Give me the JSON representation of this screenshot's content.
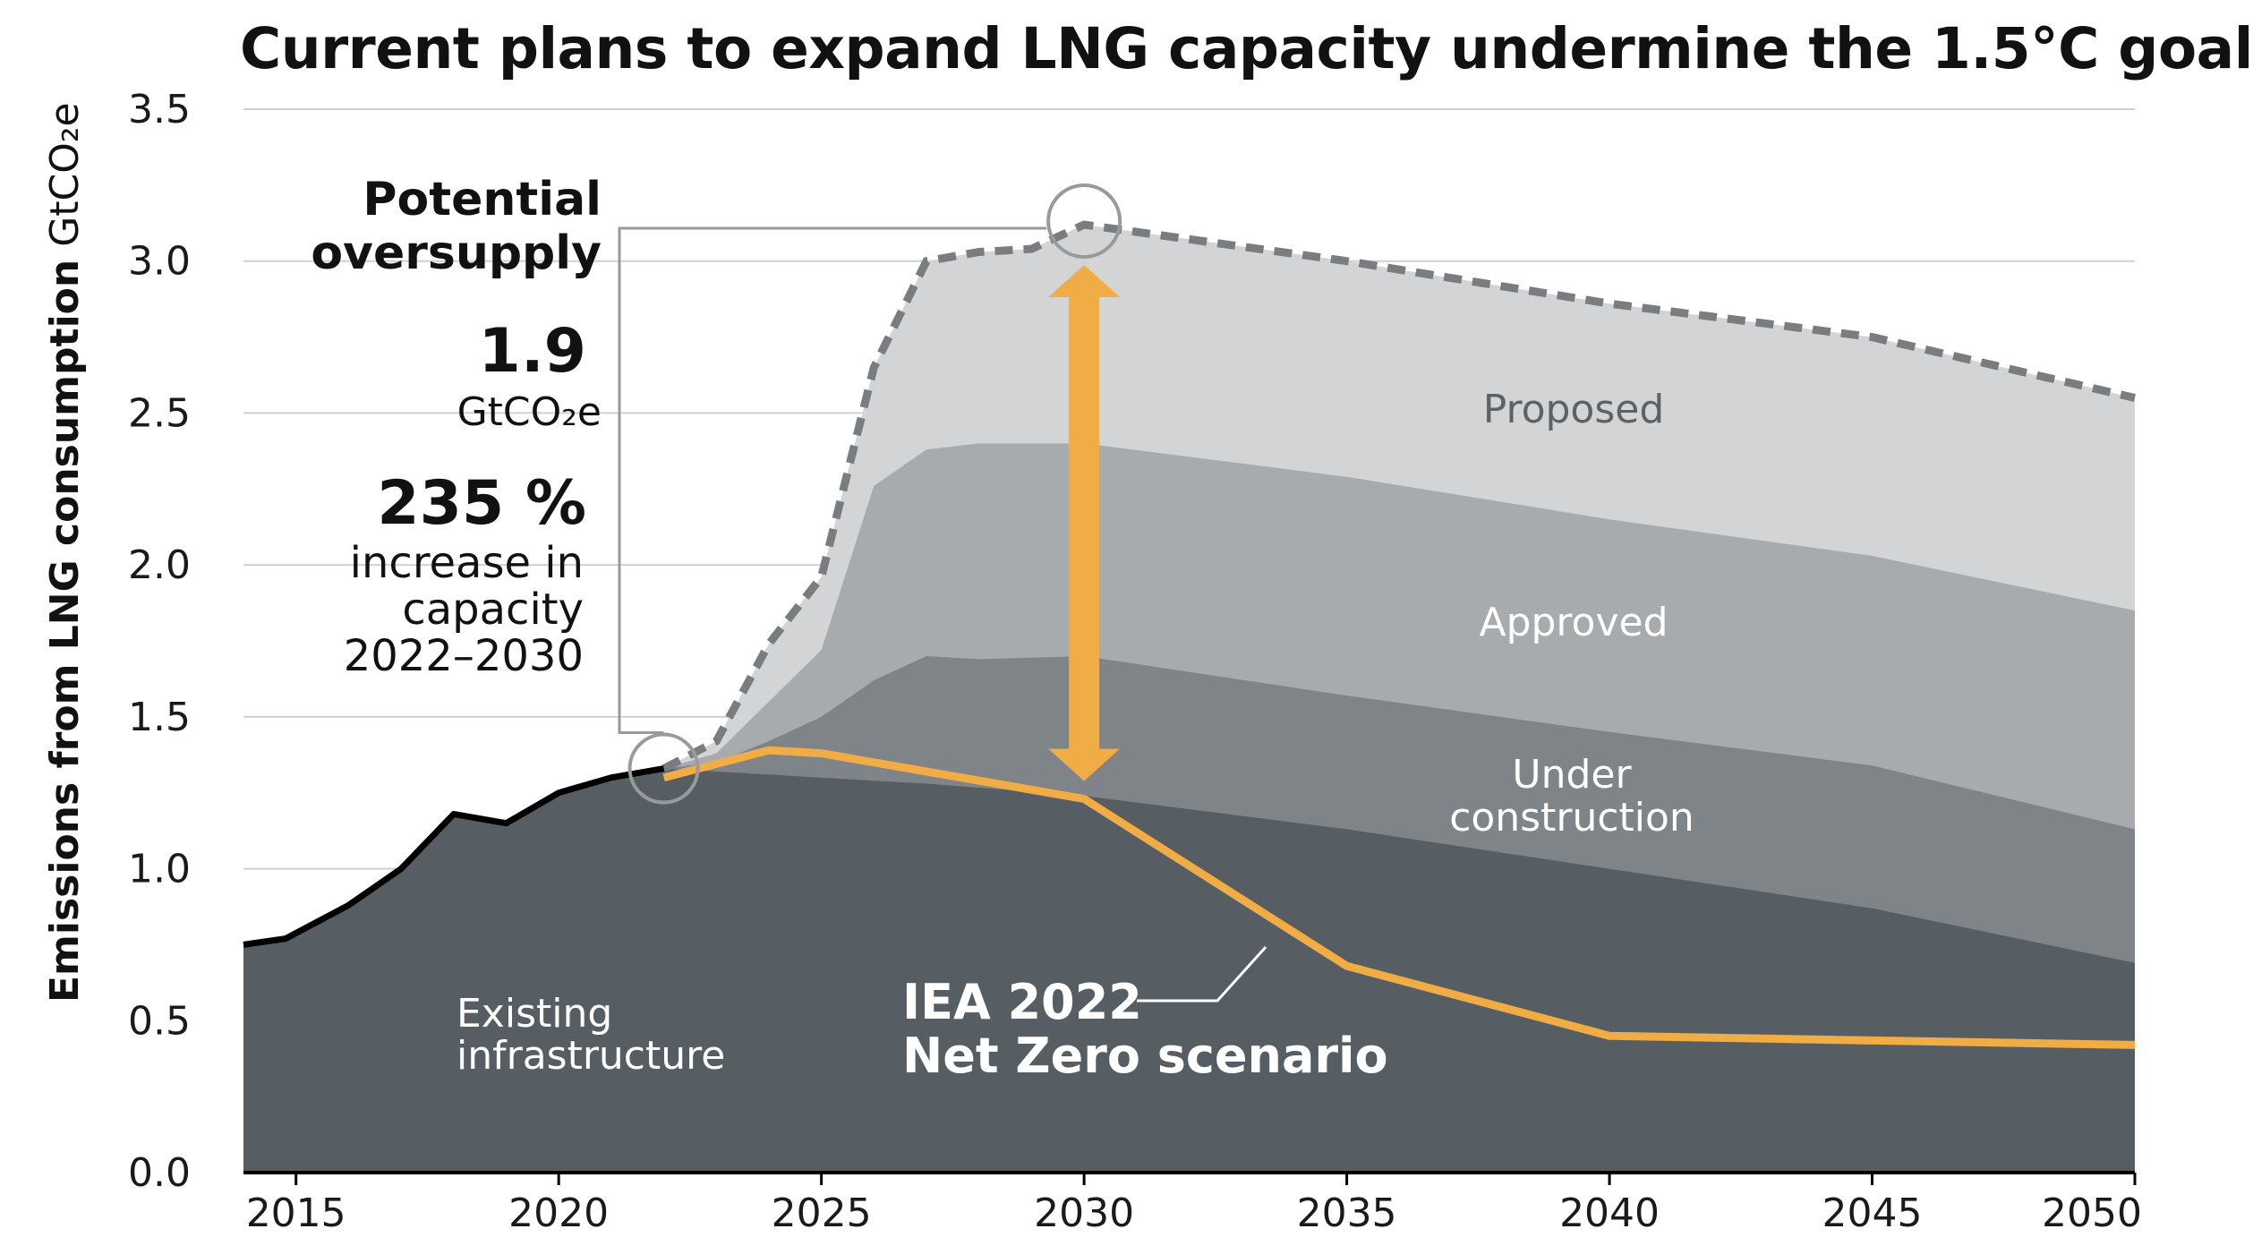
{
  "chart_data": {
    "type": "area",
    "title": "Current plans to expand LNG capacity undermine the 1.5°C goal",
    "ylabel_bold": "Emissions from LNG consumption",
    "ylabel_unit": "GtCO₂e",
    "ylim": [
      0,
      3.5
    ],
    "xlim": [
      2014,
      2050
    ],
    "x_ticks": [
      "2015",
      "2020",
      "2025",
      "2030",
      "2035",
      "2040",
      "2045",
      "2050"
    ],
    "y_ticks": [
      "0.0",
      "0.5",
      "1.0",
      "1.5",
      "2.0",
      "2.5",
      "3.0",
      "3.5"
    ],
    "grid": true,
    "history": {
      "x": [
        2014,
        2014.8,
        2016,
        2017,
        2018,
        2019,
        2020,
        2021,
        2022
      ],
      "y": [
        0.75,
        0.77,
        0.88,
        1.0,
        1.18,
        1.15,
        1.25,
        1.3,
        1.33
      ]
    },
    "series": [
      {
        "name": "Existing infrastructure",
        "color": "#575e63",
        "x": [
          2022,
          2023,
          2025,
          2027,
          2030,
          2035,
          2040,
          2045,
          2050
        ],
        "y": [
          1.33,
          1.32,
          1.3,
          1.28,
          1.24,
          1.13,
          1.0,
          0.87,
          0.69
        ]
      },
      {
        "name": "Under construction",
        "color": "#7e8487",
        "x": [
          2022,
          2023,
          2024,
          2025,
          2026,
          2027,
          2028,
          2030,
          2035,
          2040,
          2045,
          2050
        ],
        "y": [
          1.33,
          1.35,
          1.42,
          1.5,
          1.62,
          1.7,
          1.69,
          1.7,
          1.57,
          1.45,
          1.34,
          1.13
        ]
      },
      {
        "name": "Approved",
        "color": "#a7abad",
        "x": [
          2022,
          2023,
          2024,
          2025,
          2026,
          2027,
          2028,
          2030,
          2035,
          2040,
          2045,
          2050
        ],
        "y": [
          1.33,
          1.38,
          1.55,
          1.72,
          2.26,
          2.38,
          2.4,
          2.4,
          2.29,
          2.15,
          2.03,
          1.85
        ]
      },
      {
        "name": "Proposed",
        "color": "#d2d4d5",
        "x": [
          2022,
          2023,
          2024,
          2025,
          2026,
          2027,
          2028,
          2029,
          2030,
          2035,
          2040,
          2045,
          2050
        ],
        "y": [
          1.33,
          1.42,
          1.74,
          1.96,
          2.65,
          3.0,
          3.03,
          3.04,
          3.12,
          3.0,
          2.86,
          2.75,
          2.55
        ]
      },
      {
        "name": "IEA 2022 Net Zero scenario",
        "color": "#f0ac45",
        "x": [
          2022,
          2024,
          2025,
          2030,
          2035,
          2040,
          2050
        ],
        "y": [
          1.3,
          1.39,
          1.38,
          1.23,
          0.68,
          0.45,
          0.42
        ]
      }
    ],
    "area_labels": {
      "proposed": "Proposed",
      "approved": "Approved",
      "under_line1": "Under",
      "under_line2": "construction",
      "existing_line1": "Existing",
      "existing_line2": "infrastructure",
      "iea_line1": "IEA 2022",
      "iea_line2": "Net Zero scenario"
    },
    "annotation": {
      "potential_line1": "Potential",
      "potential_line2": "oversupply",
      "oversupply_value": "1.9",
      "oversupply_unit": "GtCO₂e",
      "increase_value": "235 %",
      "increase_line1": "increase in",
      "increase_line2": "capacity",
      "increase_line3": "2022–2030",
      "arrow_from": 1.23,
      "arrow_to": 3.12,
      "arrow_year": 2030
    },
    "colors": {
      "accent": "#f0ac45",
      "history_line": "#000000",
      "proposed_outline": "#7a7d80",
      "grid": "#d0d0d0"
    }
  }
}
